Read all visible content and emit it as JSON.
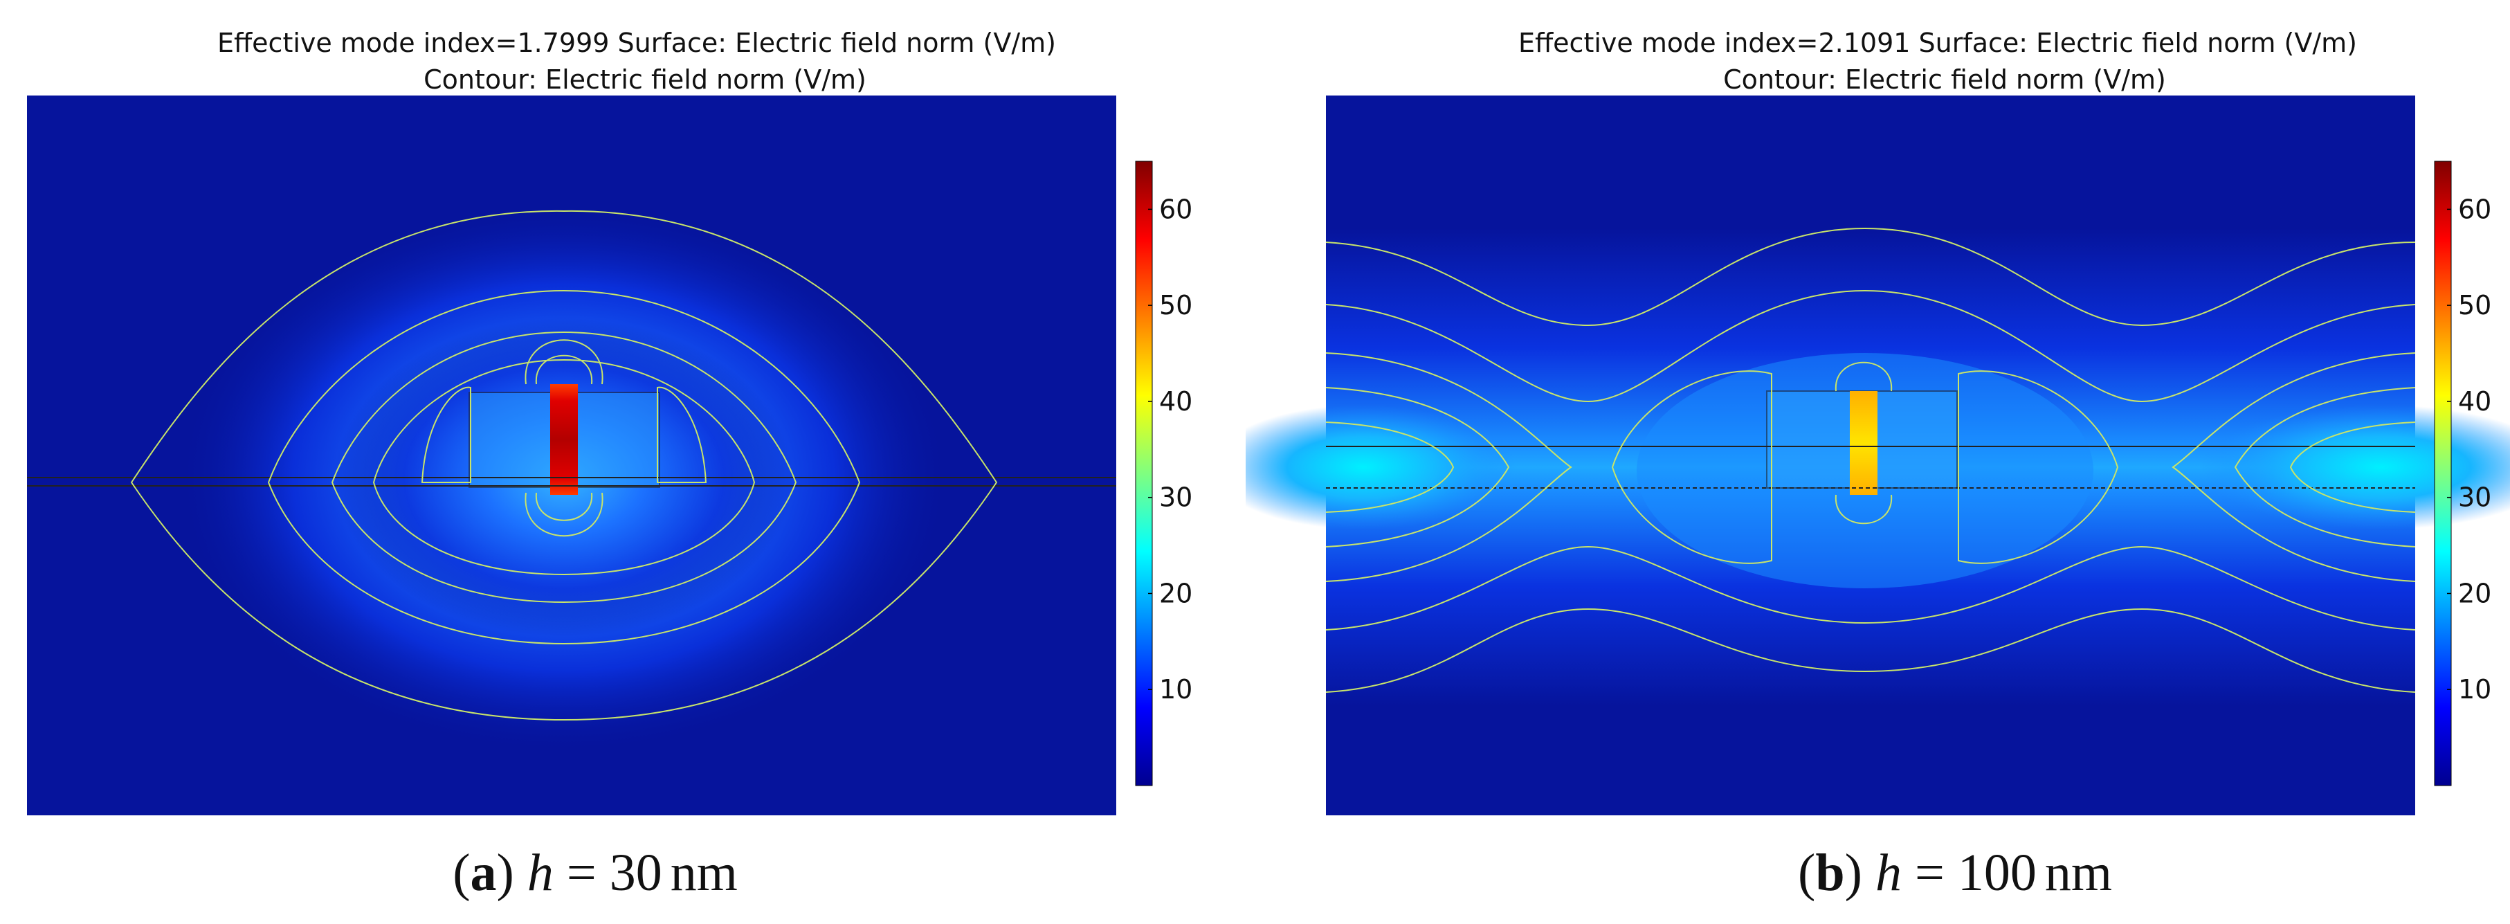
{
  "chart_data": [
    {
      "type": "heatmap",
      "panel": "a",
      "title_line1": "Effective mode index=1.7999  Surface: Electric field norm (V/m)",
      "title_line2": "Contour: Electric field norm (V/m)",
      "effective_mode_index": 1.7999,
      "colorbar": {
        "min": 0,
        "max": 65,
        "ticks": [
          10,
          20,
          30,
          40,
          50,
          60
        ]
      },
      "caption": {
        "letter": "a",
        "variable": "h",
        "equals": "=",
        "value": "30",
        "unit": "nm"
      }
    },
    {
      "type": "heatmap",
      "panel": "b",
      "title_line1": "Effective mode index=2.1091 Surface: Electric field norm (V/m)",
      "title_line2": "Contour: Electric field norm (V/m)",
      "effective_mode_index": 2.1091,
      "colorbar": {
        "min": 0,
        "max": 65,
        "ticks": [
          10,
          20,
          30,
          40,
          50,
          60
        ]
      },
      "caption": {
        "letter": "b",
        "variable": "h",
        "equals": "=",
        "value": "100",
        "unit": "nm"
      }
    }
  ]
}
